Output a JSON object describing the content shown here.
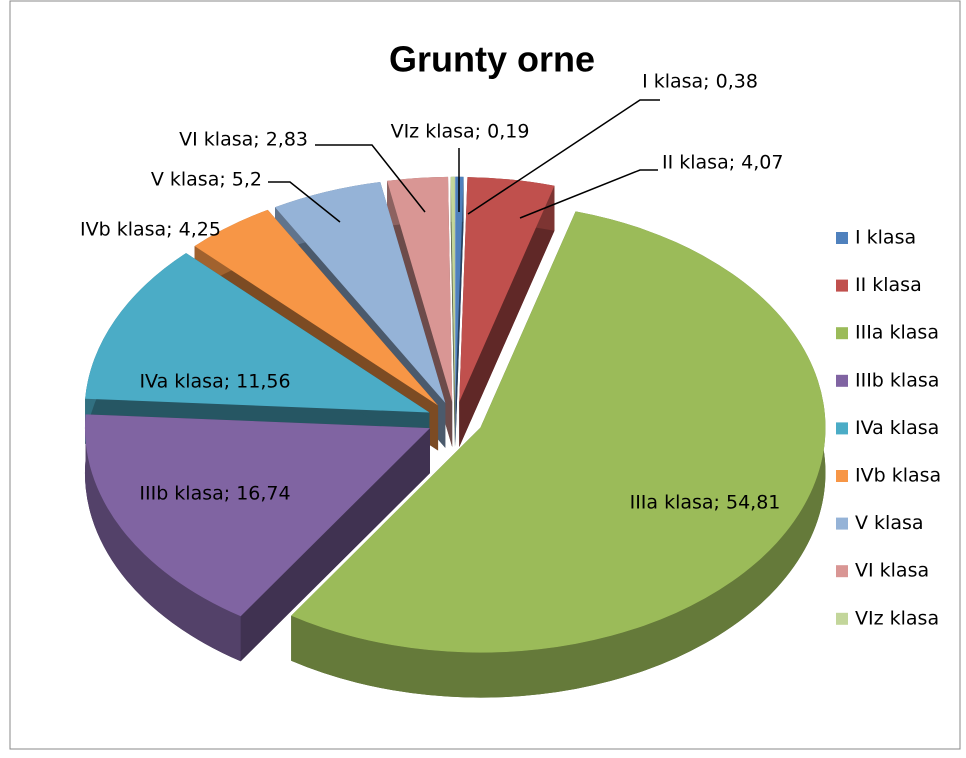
{
  "chart_data": {
    "type": "pie3d",
    "title": "Grunty orne",
    "categories": [
      "I klasa",
      "II klasa",
      "IIIa klasa",
      "IIIb klasa",
      "IVa klasa",
      "IVb klasa",
      "V klasa",
      "VI klasa",
      "VIz klasa"
    ],
    "values": [
      0.38,
      4.07,
      54.81,
      16.74,
      11.56,
      4.25,
      5.2,
      2.83,
      0.19
    ],
    "value_labels": [
      "I klasa; 0,38",
      "II klasa; 4,07",
      "IIIa klasa; 54,81",
      "IIIb klasa; 16,74",
      "IVa klasa; 11,56",
      "IVb klasa; 4,25",
      "V klasa; 5,2",
      "VI klasa; 2,83",
      "VIz klasa; 0,19"
    ],
    "colors": [
      "#4f81bd",
      "#c0504d",
      "#9bbb59",
      "#8064a2",
      "#4bacc6",
      "#f79646",
      "#95b3d7",
      "#d99694",
      "#c3d69b"
    ],
    "legend": "right"
  }
}
